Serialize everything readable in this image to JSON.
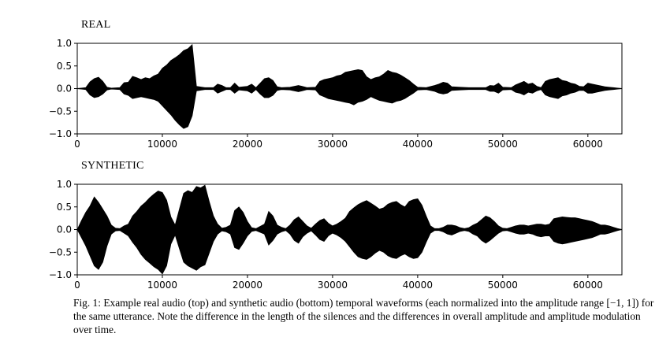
{
  "chart_data": [
    {
      "type": "line",
      "title": "REAL",
      "xlabel": "",
      "ylabel": "",
      "xlim": [
        0,
        64000
      ],
      "ylim": [
        -1.0,
        1.0
      ],
      "xticks": [
        0,
        10000,
        20000,
        30000,
        40000,
        50000,
        60000
      ],
      "xtick_labels": [
        "0",
        "10000",
        "20000",
        "30000",
        "40000",
        "50000",
        "60000"
      ],
      "yticks": [
        1.0,
        0.5,
        0.0,
        -0.5,
        -1.0
      ],
      "ytick_labels": [
        "1.0",
        "0.5",
        "0.0",
        "−0.5",
        "−1.0"
      ],
      "grid": false,
      "series": [
        {
          "color": "#000000",
          "x": [
            0,
            1000,
            1500,
            2000,
            2500,
            3000,
            3500,
            4000,
            5000,
            5500,
            6000,
            6500,
            7000,
            7500,
            8000,
            8500,
            9000,
            9500,
            10000,
            10500,
            11000,
            11500,
            12000,
            12500,
            13000,
            13500,
            14000,
            15000,
            16000,
            16500,
            17000,
            17500,
            18000,
            18500,
            19000,
            20000,
            20500,
            21000,
            21500,
            22000,
            22500,
            23000,
            23500,
            24000,
            25000,
            26000,
            27000,
            28000,
            28500,
            29000,
            29500,
            30000,
            30500,
            31000,
            31500,
            32000,
            32500,
            33000,
            33500,
            34000,
            34500,
            35000,
            35500,
            36000,
            36500,
            37000,
            37500,
            38000,
            38500,
            39000,
            39500,
            40000,
            41000,
            42000,
            42500,
            43000,
            43500,
            44000,
            45000,
            46000,
            47000,
            48000,
            48500,
            49000,
            49500,
            50000,
            51000,
            51500,
            52000,
            52500,
            53000,
            53500,
            54000,
            54500,
            55000,
            55500,
            56000,
            56500,
            57000,
            57500,
            58000,
            58500,
            59000,
            59500,
            60000,
            60500,
            61000,
            61500,
            62000,
            62500,
            63000,
            63500,
            64000
          ],
          "upper": [
            0,
            0.02,
            0.15,
            0.22,
            0.25,
            0.16,
            0.03,
            0.01,
            0.02,
            0.13,
            0.14,
            0.27,
            0.24,
            0.2,
            0.24,
            0.22,
            0.28,
            0.32,
            0.45,
            0.52,
            0.62,
            0.68,
            0.75,
            0.84,
            0.88,
            0.97,
            0.05,
            0.02,
            0.02,
            0.1,
            0.07,
            0.02,
            0.02,
            0.12,
            0.03,
            0.05,
            0.1,
            0.02,
            0.12,
            0.22,
            0.24,
            0.18,
            0.04,
            0.02,
            0.03,
            0.07,
            0.02,
            0.03,
            0.16,
            0.2,
            0.22,
            0.24,
            0.28,
            0.3,
            0.36,
            0.38,
            0.4,
            0.42,
            0.4,
            0.26,
            0.2,
            0.24,
            0.26,
            0.32,
            0.4,
            0.36,
            0.34,
            0.3,
            0.24,
            0.18,
            0.1,
            0.03,
            0.02,
            0.07,
            0.1,
            0.14,
            0.12,
            0.04,
            0.03,
            0.02,
            0.02,
            0.02,
            0.07,
            0.06,
            0.12,
            0.03,
            0.02,
            0.08,
            0.12,
            0.16,
            0.1,
            0.12,
            0.05,
            0.02,
            0.16,
            0.2,
            0.22,
            0.24,
            0.18,
            0.16,
            0.12,
            0.1,
            0.05,
            0.04,
            0.12,
            0.1,
            0.08,
            0.06,
            0.04,
            0.03,
            0.02,
            0.01,
            0
          ],
          "lower": [
            0,
            -0.02,
            -0.14,
            -0.2,
            -0.18,
            -0.12,
            -0.03,
            -0.01,
            -0.02,
            -0.12,
            -0.15,
            -0.22,
            -0.2,
            -0.18,
            -0.2,
            -0.22,
            -0.24,
            -0.28,
            -0.38,
            -0.48,
            -0.58,
            -0.7,
            -0.8,
            -0.88,
            -0.84,
            -0.6,
            -0.05,
            -0.02,
            -0.02,
            -0.1,
            -0.06,
            -0.02,
            -0.02,
            -0.1,
            -0.03,
            -0.05,
            -0.1,
            -0.02,
            -0.12,
            -0.2,
            -0.2,
            -0.15,
            -0.04,
            -0.02,
            -0.03,
            -0.07,
            -0.02,
            -0.03,
            -0.14,
            -0.18,
            -0.22,
            -0.24,
            -0.26,
            -0.28,
            -0.3,
            -0.32,
            -0.36,
            -0.3,
            -0.28,
            -0.24,
            -0.18,
            -0.22,
            -0.26,
            -0.28,
            -0.3,
            -0.32,
            -0.28,
            -0.26,
            -0.22,
            -0.16,
            -0.1,
            -0.03,
            -0.02,
            -0.06,
            -0.1,
            -0.12,
            -0.1,
            -0.04,
            -0.03,
            -0.02,
            -0.02,
            -0.02,
            -0.06,
            -0.06,
            -0.1,
            -0.03,
            -0.02,
            -0.08,
            -0.1,
            -0.14,
            -0.08,
            -0.1,
            -0.05,
            -0.02,
            -0.14,
            -0.18,
            -0.2,
            -0.22,
            -0.16,
            -0.14,
            -0.1,
            -0.08,
            -0.04,
            -0.04,
            -0.1,
            -0.1,
            -0.08,
            -0.06,
            -0.04,
            -0.03,
            -0.02,
            -0.01,
            0
          ]
        }
      ]
    },
    {
      "type": "line",
      "title": "SYNTHETIC",
      "xlabel": "",
      "ylabel": "",
      "xlim": [
        0,
        64000
      ],
      "ylim": [
        -1.0,
        1.0
      ],
      "xticks": [
        0,
        10000,
        20000,
        30000,
        40000,
        50000,
        60000
      ],
      "xtick_labels": [
        "0",
        "10000",
        "20000",
        "30000",
        "40000",
        "50000",
        "60000"
      ],
      "yticks": [
        1.0,
        0.5,
        0.0,
        -0.5,
        -1.0
      ],
      "ytick_labels": [
        "1.0",
        "0.5",
        "0.0",
        "−0.5",
        "−1.0"
      ],
      "grid": false,
      "series": [
        {
          "color": "#000000",
          "x": [
            0,
            500,
            1000,
            1500,
            2000,
            2500,
            3000,
            3500,
            4000,
            4500,
            5000,
            5500,
            6000,
            6500,
            7000,
            7500,
            8000,
            8500,
            9000,
            9500,
            10000,
            10500,
            11000,
            11500,
            12000,
            12500,
            13000,
            13500,
            14000,
            14500,
            15000,
            15500,
            16000,
            16500,
            17000,
            17500,
            18000,
            18500,
            19000,
            19500,
            20000,
            20500,
            21000,
            22000,
            22500,
            23000,
            23500,
            24000,
            24500,
            25000,
            25500,
            26000,
            26500,
            27000,
            27500,
            28000,
            28500,
            29000,
            29500,
            30000,
            30500,
            31000,
            31500,
            32000,
            32500,
            33000,
            33500,
            34000,
            34500,
            35000,
            35500,
            36000,
            36500,
            37000,
            37500,
            38000,
            38500,
            39000,
            39500,
            40000,
            40500,
            41000,
            41500,
            42000,
            42500,
            43000,
            43500,
            44000,
            44500,
            45000,
            45500,
            46000,
            46500,
            47000,
            47500,
            48000,
            48500,
            49000,
            49500,
            50000,
            50500,
            51000,
            51500,
            52000,
            52500,
            53000,
            53500,
            54000,
            54500,
            55000,
            55500,
            56000,
            56500,
            57000,
            57500,
            58000,
            58500,
            59000,
            59500,
            60000,
            60500,
            61000,
            61500,
            62000,
            62500,
            63000,
            63500,
            64000
          ],
          "upper": [
            0,
            0.2,
            0.38,
            0.52,
            0.72,
            0.6,
            0.45,
            0.3,
            0.1,
            0.03,
            0.02,
            0.08,
            0.12,
            0.3,
            0.4,
            0.52,
            0.6,
            0.7,
            0.78,
            0.85,
            0.82,
            0.65,
            0.28,
            0.1,
            0.45,
            0.8,
            0.86,
            0.82,
            0.95,
            0.92,
            0.98,
            0.62,
            0.3,
            0.12,
            0.03,
            0.05,
            0.1,
            0.42,
            0.5,
            0.38,
            0.18,
            0.04,
            0.02,
            0.12,
            0.4,
            0.3,
            0.1,
            0.05,
            0.02,
            0.1,
            0.22,
            0.28,
            0.18,
            0.08,
            0.03,
            0.12,
            0.2,
            0.24,
            0.14,
            0.08,
            0.12,
            0.18,
            0.25,
            0.4,
            0.48,
            0.55,
            0.6,
            0.64,
            0.58,
            0.52,
            0.45,
            0.48,
            0.56,
            0.6,
            0.62,
            0.55,
            0.5,
            0.62,
            0.66,
            0.68,
            0.54,
            0.3,
            0.08,
            0.02,
            0.02,
            0.05,
            0.1,
            0.1,
            0.08,
            0.04,
            0.02,
            0.04,
            0.1,
            0.14,
            0.22,
            0.3,
            0.26,
            0.18,
            0.08,
            0.03,
            0.02,
            0.05,
            0.08,
            0.1,
            0.1,
            0.08,
            0.1,
            0.12,
            0.12,
            0.1,
            0.12,
            0.24,
            0.26,
            0.28,
            0.27,
            0.26,
            0.26,
            0.24,
            0.22,
            0.2,
            0.18,
            0.14,
            0.1,
            0.1,
            0.08,
            0.05,
            0.02,
            0
          ],
          "lower": [
            0,
            -0.18,
            -0.36,
            -0.58,
            -0.8,
            -0.88,
            -0.72,
            -0.36,
            -0.1,
            -0.03,
            -0.02,
            -0.08,
            -0.14,
            -0.28,
            -0.4,
            -0.55,
            -0.66,
            -0.74,
            -0.82,
            -0.88,
            -0.98,
            -0.8,
            -0.32,
            -0.12,
            -0.42,
            -0.72,
            -0.8,
            -0.85,
            -0.9,
            -0.82,
            -0.78,
            -0.52,
            -0.26,
            -0.1,
            -0.03,
            -0.05,
            -0.1,
            -0.4,
            -0.44,
            -0.3,
            -0.14,
            -0.04,
            -0.02,
            -0.1,
            -0.34,
            -0.24,
            -0.1,
            -0.05,
            -0.02,
            -0.1,
            -0.24,
            -0.3,
            -0.16,
            -0.08,
            -0.03,
            -0.12,
            -0.22,
            -0.26,
            -0.14,
            -0.08,
            -0.12,
            -0.18,
            -0.26,
            -0.38,
            -0.5,
            -0.6,
            -0.64,
            -0.66,
            -0.6,
            -0.52,
            -0.46,
            -0.5,
            -0.58,
            -0.62,
            -0.64,
            -0.58,
            -0.54,
            -0.6,
            -0.64,
            -0.62,
            -0.5,
            -0.28,
            -0.08,
            -0.02,
            -0.02,
            -0.05,
            -0.1,
            -0.12,
            -0.08,
            -0.04,
            -0.02,
            -0.04,
            -0.1,
            -0.14,
            -0.24,
            -0.3,
            -0.24,
            -0.16,
            -0.08,
            -0.03,
            -0.02,
            -0.05,
            -0.08,
            -0.1,
            -0.1,
            -0.08,
            -0.1,
            -0.14,
            -0.16,
            -0.14,
            -0.14,
            -0.26,
            -0.3,
            -0.32,
            -0.3,
            -0.28,
            -0.26,
            -0.24,
            -0.22,
            -0.2,
            -0.18,
            -0.14,
            -0.1,
            -0.1,
            -0.08,
            -0.05,
            -0.02,
            0
          ]
        }
      ]
    }
  ],
  "caption": {
    "part1": "Fig. 1: Example real audio (top) and synthetic audio (bottom) temporal waveforms (each normalized into the amplitude range ",
    "range": "[−1, 1]",
    "part2": ") for the same utterance. Note the difference in the length of the silences and the differences in overall amplitude and amplitude modulation over time."
  }
}
